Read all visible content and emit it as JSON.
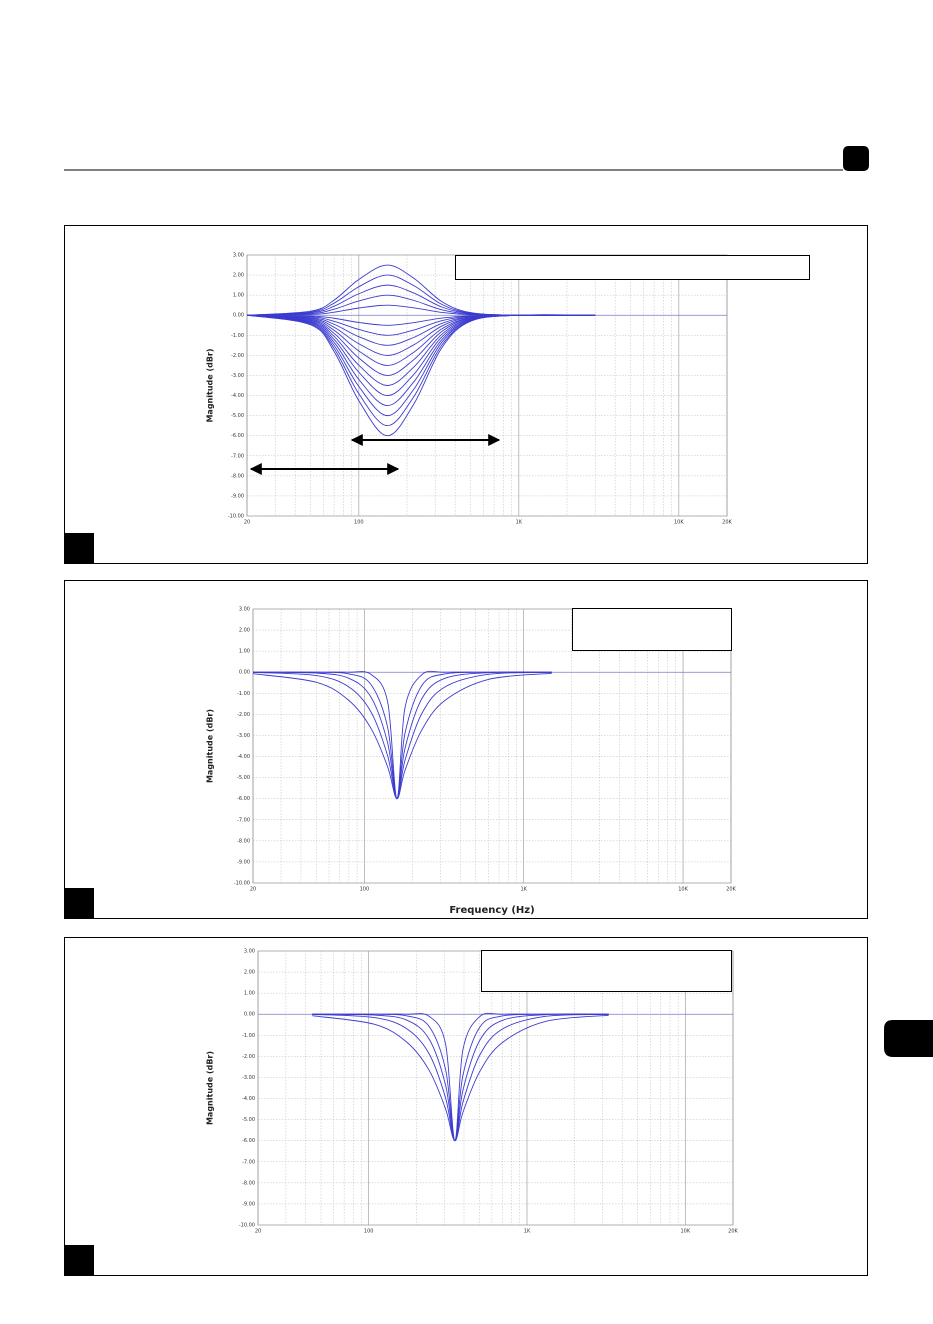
{
  "chart_data": [
    {
      "type": "line",
      "ylabel": "Magnitude (dBr)",
      "xscale": "log",
      "grid": true,
      "xlim": [
        20,
        20000
      ],
      "ylim": [
        -10,
        3
      ],
      "xticks": [
        20,
        100,
        {
          "value": 1000,
          "label": "1K"
        },
        {
          "value": 10000,
          "label": "10K"
        },
        {
          "value": 20000,
          "label": "20K"
        }
      ],
      "yticks": [
        {
          "value": 3,
          "label": "3.00"
        },
        {
          "value": 2,
          "label": "2.00"
        },
        {
          "value": 1,
          "label": "1.00"
        },
        {
          "value": 0,
          "label": "0.00"
        },
        {
          "value": -1,
          "label": "-1.00"
        },
        {
          "value": -2,
          "label": "-2.00"
        },
        {
          "value": -3,
          "label": "-3.00"
        },
        {
          "value": -4,
          "label": "-4.00"
        },
        {
          "value": -5,
          "label": "-5.00"
        },
        {
          "value": -6,
          "label": "-6.00"
        },
        {
          "value": -7,
          "label": "-7.00"
        },
        {
          "value": -8,
          "label": "-8.00"
        },
        {
          "value": -9,
          "label": "-9.00"
        },
        {
          "value": -10,
          "label": "-10.00"
        }
      ],
      "x": [
        20,
        50,
        70,
        100,
        150,
        220,
        330,
        500,
        1000,
        3000
      ],
      "series": [
        {
          "color": "#3b3bd0",
          "values": [
            0,
            0.2,
            0.75,
            1.78,
            2.5,
            1.85,
            0.68,
            0.13,
            0,
            0
          ]
        },
        {
          "color": "#3b3bd0",
          "values": [
            0,
            0.16,
            0.6,
            1.42,
            2,
            1.48,
            0.54,
            0.1,
            0,
            0
          ]
        },
        {
          "color": "#3b3bd0",
          "values": [
            0,
            0.12,
            0.45,
            1.07,
            1.5,
            1.11,
            0.41,
            0.08,
            0,
            0
          ]
        },
        {
          "color": "#3b3bd0",
          "values": [
            0,
            0.08,
            0.3,
            0.71,
            1,
            0.74,
            0.27,
            0.05,
            0,
            0
          ]
        },
        {
          "color": "#3b3bd0",
          "values": [
            0,
            0.04,
            0.15,
            0.36,
            0.5,
            0.37,
            0.14,
            0.03,
            0,
            0
          ]
        },
        {
          "color": "#3b3bd0",
          "values": [
            0,
            -0.04,
            -0.15,
            -0.36,
            -0.5,
            -0.37,
            -0.14,
            -0.03,
            0,
            0
          ]
        },
        {
          "color": "#3b3bd0",
          "values": [
            0,
            -0.08,
            -0.3,
            -0.71,
            -1,
            -0.74,
            -0.27,
            -0.05,
            0,
            0
          ]
        },
        {
          "color": "#3b3bd0",
          "values": [
            0,
            -0.12,
            -0.45,
            -1.07,
            -1.5,
            -1.11,
            -0.41,
            -0.08,
            0,
            0
          ]
        },
        {
          "color": "#3b3bd0",
          "values": [
            0,
            -0.16,
            -0.6,
            -1.42,
            -2,
            -1.48,
            -0.54,
            -0.1,
            0,
            0
          ]
        },
        {
          "color": "#3b3bd0",
          "values": [
            0,
            -0.2,
            -0.75,
            -1.78,
            -2.5,
            -1.85,
            -0.68,
            -0.13,
            0,
            0
          ]
        },
        {
          "color": "#3b3bd0",
          "values": [
            0,
            -0.24,
            -0.9,
            -2.13,
            -3,
            -2.22,
            -0.81,
            -0.15,
            0,
            0
          ]
        },
        {
          "color": "#3b3bd0",
          "values": [
            0,
            -0.28,
            -1.05,
            -2.49,
            -3.5,
            -2.59,
            -0.95,
            -0.18,
            0,
            0
          ]
        },
        {
          "color": "#3b3bd0",
          "values": [
            0,
            -0.32,
            -1.2,
            -2.84,
            -4,
            -2.96,
            -1.08,
            -0.2,
            0,
            0
          ]
        },
        {
          "color": "#3b3bd0",
          "values": [
            0,
            -0.36,
            -1.35,
            -3.2,
            -4.5,
            -3.33,
            -1.22,
            -0.23,
            0,
            0
          ]
        },
        {
          "color": "#3b3bd0",
          "values": [
            0,
            -0.4,
            -1.5,
            -3.55,
            -5,
            -3.7,
            -1.35,
            -0.25,
            0,
            0
          ]
        },
        {
          "color": "#3b3bd0",
          "values": [
            0,
            -0.44,
            -1.65,
            -3.91,
            -5.5,
            -4.07,
            -1.49,
            -0.28,
            0,
            0
          ]
        },
        {
          "color": "#3b3bd0",
          "values": [
            0,
            -0.48,
            -1.8,
            -4.26,
            -6,
            -4.44,
            -1.62,
            -0.3,
            0,
            0
          ]
        }
      ]
    },
    {
      "type": "line",
      "ylabel": "Magnitude (dBr)",
      "xlabel": "Frequency (Hz)",
      "xscale": "log",
      "grid": true,
      "xlim": [
        20,
        20000
      ],
      "ylim": [
        -10,
        3
      ],
      "xticks": [
        20,
        100,
        {
          "value": 1000,
          "label": "1K"
        },
        {
          "value": 10000,
          "label": "10K"
        },
        {
          "value": 20000,
          "label": "20K"
        }
      ],
      "yticks": [
        {
          "value": 3,
          "label": "3.00"
        },
        {
          "value": 2,
          "label": "2.00"
        },
        {
          "value": 1,
          "label": "1.00"
        },
        {
          "value": 0,
          "label": "0.00"
        },
        {
          "value": -1,
          "label": "-1.00"
        },
        {
          "value": -2,
          "label": "-2.00"
        },
        {
          "value": -3,
          "label": "-3.00"
        },
        {
          "value": -4,
          "label": "-4.00"
        },
        {
          "value": -5,
          "label": "-5.00"
        },
        {
          "value": -6,
          "label": "-6.00"
        },
        {
          "value": -7,
          "label": "-7.00"
        },
        {
          "value": -8,
          "label": "-8.00"
        },
        {
          "value": -9,
          "label": "-9.00"
        },
        {
          "value": -10,
          "label": "-10.00"
        }
      ],
      "x": [
        20,
        50,
        80,
        110,
        140,
        160,
        180,
        230,
        320,
        600,
        1500
      ],
      "series": [
        {
          "color": "#3b3bd0",
          "values": [
            0,
            0,
            0,
            -0.1,
            -1.41,
            -6,
            -1.67,
            -0.11,
            0,
            0,
            0
          ]
        },
        {
          "color": "#3b3bd0",
          "values": [
            0,
            0,
            -0.08,
            -0.58,
            -2.62,
            -6,
            -2.89,
            -0.62,
            -0.08,
            0,
            0
          ]
        },
        {
          "color": "#3b3bd0",
          "values": [
            0,
            -0.04,
            -0.29,
            -1.18,
            -3.36,
            -6,
            -3.6,
            -1.24,
            -0.29,
            -0.02,
            0
          ]
        },
        {
          "color": "#3b3bd0",
          "values": [
            -0.01,
            -0.16,
            -0.7,
            -1.88,
            -3.97,
            -6,
            -4.17,
            -1.94,
            -0.7,
            -0.1,
            -0.01
          ]
        },
        {
          "color": "#3b3bd0",
          "values": [
            -0.07,
            -0.48,
            -1.34,
            -2.66,
            -4.49,
            -6,
            -4.65,
            -2.72,
            -1.34,
            -0.34,
            -0.05
          ]
        }
      ]
    },
    {
      "type": "line",
      "ylabel": "Magnitude (dBr)",
      "xscale": "log",
      "grid": true,
      "xlim": [
        20,
        20000
      ],
      "ylim": [
        -10,
        3
      ],
      "xticks": [
        20,
        100,
        {
          "value": 1000,
          "label": "1K"
        },
        {
          "value": 10000,
          "label": "10K"
        },
        {
          "value": 20000,
          "label": "20K"
        }
      ],
      "yticks": [
        {
          "value": 3,
          "label": "3.00"
        },
        {
          "value": 2,
          "label": "2.00"
        },
        {
          "value": 1,
          "label": "1.00"
        },
        {
          "value": 0,
          "label": "0.00"
        },
        {
          "value": -1,
          "label": "-1.00"
        },
        {
          "value": -2,
          "label": "-2.00"
        },
        {
          "value": -3,
          "label": "-3.00"
        },
        {
          "value": -4,
          "label": "-4.00"
        },
        {
          "value": -5,
          "label": "-5.00"
        },
        {
          "value": -6,
          "label": "-6.00"
        },
        {
          "value": -7,
          "label": "-7.00"
        },
        {
          "value": -8,
          "label": "-8.00"
        },
        {
          "value": -9,
          "label": "-9.00"
        },
        {
          "value": -10,
          "label": "-10.00"
        }
      ],
      "x": [
        44,
        109,
        175,
        241,
        306,
        350,
        394,
        503,
        700,
        1310,
        3280
      ],
      "series": [
        {
          "color": "#3b3bd0",
          "values": [
            0,
            0,
            0,
            -0.1,
            -1.41,
            -6,
            -1.67,
            -0.11,
            0,
            0,
            0
          ]
        },
        {
          "color": "#3b3bd0",
          "values": [
            0,
            0,
            -0.08,
            -0.58,
            -2.62,
            -6,
            -2.89,
            -0.62,
            -0.08,
            0,
            0
          ]
        },
        {
          "color": "#3b3bd0",
          "values": [
            0,
            -0.04,
            -0.29,
            -1.18,
            -3.36,
            -6,
            -3.6,
            -1.24,
            -0.29,
            -0.02,
            0
          ]
        },
        {
          "color": "#3b3bd0",
          "values": [
            -0.01,
            -0.16,
            -0.7,
            -1.88,
            -3.97,
            -6,
            -4.17,
            -1.94,
            -0.7,
            -0.1,
            -0.01
          ]
        },
        {
          "color": "#3b3bd0",
          "values": [
            -0.07,
            -0.48,
            -1.34,
            -2.66,
            -4.49,
            -6,
            -4.65,
            -2.72,
            -1.34,
            -0.34,
            -0.05
          ]
        }
      ]
    }
  ]
}
